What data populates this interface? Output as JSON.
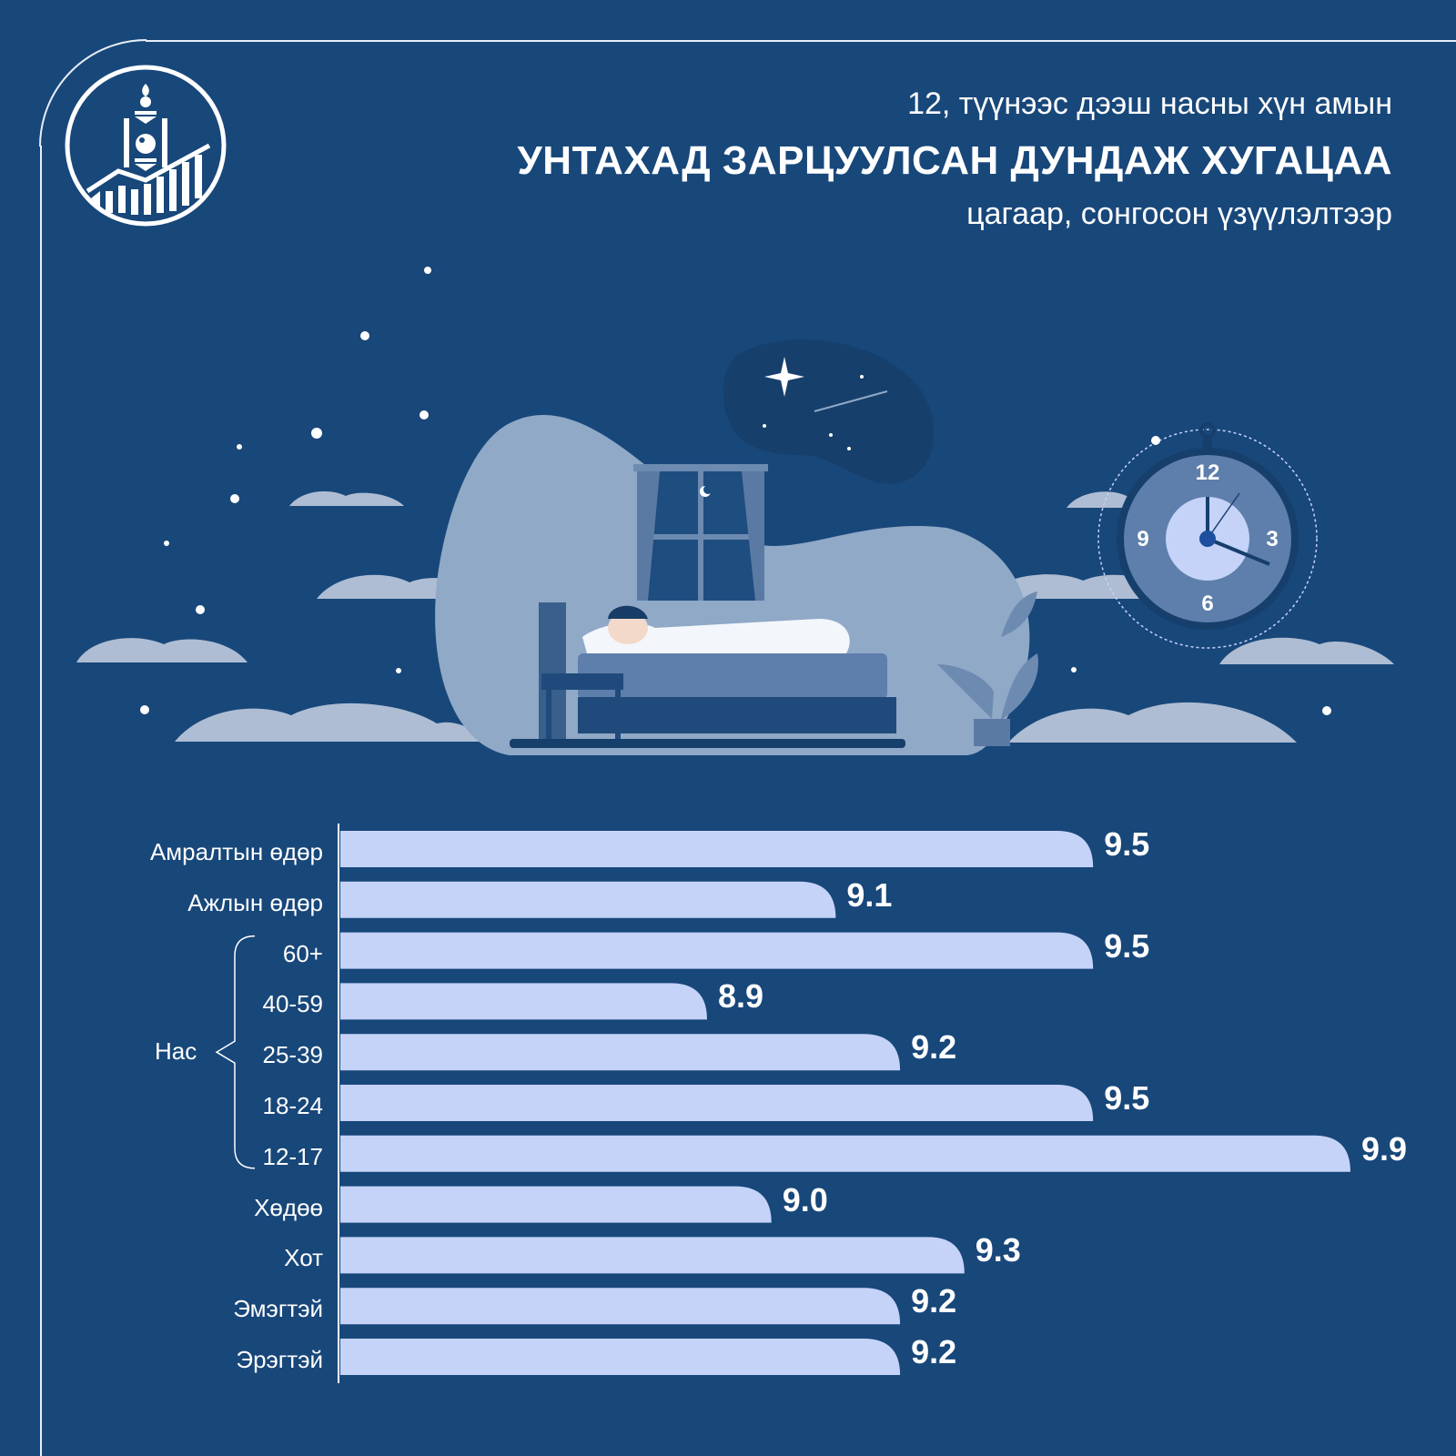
{
  "header": {
    "subtitle_top": "12, түүнээс дээш насны хүн амын",
    "title": "УНТАХАД ЗАРЦУУЛСАН ДУНДАЖ ХУГАЦАА",
    "subtitle_bottom": "цагаар, сонгосон үзүүлэлтээр"
  },
  "logo": {
    "icon": "soyombo-chart-logo-icon"
  },
  "illustration": {
    "icon": "sleeping-person-bed-icon",
    "clock_numbers": [
      "12",
      "3",
      "6",
      "9"
    ]
  },
  "colors": {
    "background": "#18477a",
    "bar": "#c5d3f8",
    "text": "#ffffff"
  },
  "chart_data": {
    "type": "bar",
    "orientation": "horizontal",
    "categories": [
      "Амралтын өдөр",
      "Ажлын өдөр",
      "60+",
      "40-59",
      "25-39",
      "18-24",
      "12-17",
      "Хөдөө",
      "Хот",
      "Эмэгтэй",
      "Эрэгтэй"
    ],
    "values": [
      9.5,
      9.1,
      9.5,
      8.9,
      9.2,
      9.5,
      9.9,
      9.0,
      9.3,
      9.2,
      9.2
    ],
    "value_labels": [
      "9.5",
      "9.1",
      "9.5",
      "8.9",
      "9.2",
      "9.5",
      "9.9",
      "9.0",
      "9.3",
      "9.2",
      "9.2"
    ],
    "group_label": "Нас",
    "grid": false,
    "legend": "none"
  }
}
